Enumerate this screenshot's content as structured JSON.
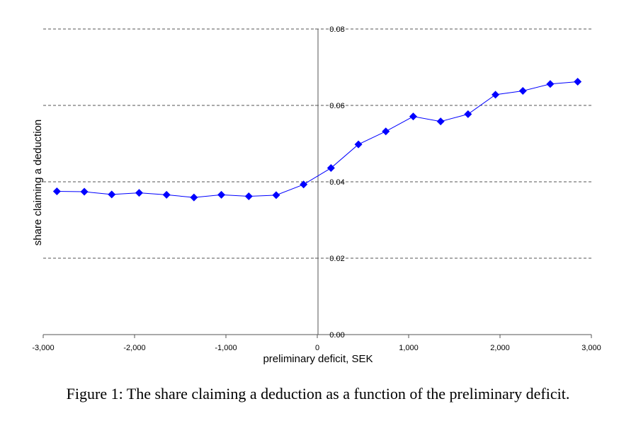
{
  "caption": "Figure 1: The share claiming a deduction as a function of the preliminary deficit.",
  "chart_data": {
    "type": "line",
    "xlabel": "preliminary deficit, SEK",
    "ylabel": "share claiming a deduction",
    "xlim": [
      -3000,
      3000
    ],
    "ylim": [
      0,
      0.08
    ],
    "xticks": [
      -3000,
      -2000,
      -1000,
      0,
      1000,
      2000,
      3000
    ],
    "xtick_labels": [
      "-3,000",
      "-2,000",
      "-1,000",
      "0",
      "1,000",
      "2,000",
      "3,000"
    ],
    "yticks": [
      0,
      0.02,
      0.04,
      0.06,
      0.08
    ],
    "ytick_labels": [
      "0.00",
      "0.02",
      "0.04",
      "0.06",
      "0.08"
    ],
    "grid": "horizontal dashed",
    "line_color": "#0000ff",
    "marker_color": "#0000ff",
    "marker": "diamond",
    "series": [
      {
        "x": [
          -2850,
          -2550,
          -2250,
          -1950,
          -1650,
          -1350,
          -1050,
          -750,
          -450,
          -150,
          150,
          450,
          750,
          1050,
          1350,
          1650,
          1950,
          2250,
          2550,
          2850
        ],
        "y": [
          0.0375,
          0.0374,
          0.0367,
          0.0371,
          0.0366,
          0.0359,
          0.0366,
          0.0362,
          0.0365,
          0.0393,
          0.0436,
          0.0498,
          0.0532,
          0.0571,
          0.0558,
          0.0577,
          0.0628,
          0.0638,
          0.0656,
          0.0662
        ]
      }
    ]
  }
}
